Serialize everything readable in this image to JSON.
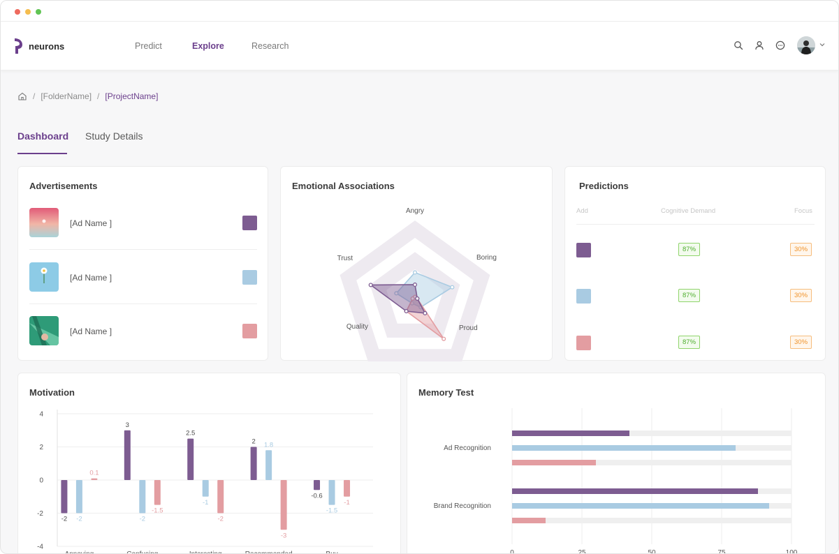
{
  "app": {
    "logo_text": "neurons"
  },
  "nav": {
    "links": [
      "Predict",
      "Explore",
      "Research"
    ],
    "active": "Explore"
  },
  "breadcrumb": {
    "folder": "[FolderName]",
    "project": "[ProjectName]",
    "separator": "/"
  },
  "tabs": {
    "dashboard": "Dashboard",
    "study_details": "Study Details"
  },
  "colors": {
    "accent": "#6b3f8c",
    "ad1": "#7d5c91",
    "ad2": "#a9cbe2",
    "ad3": "#e39da1"
  },
  "advertisements": {
    "title": "Advertisements",
    "items": [
      {
        "name": "[Ad Name ]",
        "color": "#7d5c91"
      },
      {
        "name": "[Ad Name ]",
        "color": "#a9cbe2"
      },
      {
        "name": "[Ad Name ]",
        "color": "#e39da1"
      }
    ]
  },
  "emotional": {
    "title": "Emotional Associations",
    "axes": [
      "Angry",
      "Boring",
      "Proud",
      "Quality",
      "Trust"
    ]
  },
  "predictions": {
    "title": "Predictions",
    "headers": {
      "ad": "Add",
      "cognitive": "Cognitive Demand",
      "focus": "Focus"
    },
    "rows": [
      {
        "color": "#7d5c91",
        "cognitive": "87%",
        "focus": "30%"
      },
      {
        "color": "#a9cbe2",
        "cognitive": "87%",
        "focus": "30%"
      },
      {
        "color": "#e39da1",
        "cognitive": "87%",
        "focus": "30%"
      }
    ]
  },
  "motivation": {
    "title": "Motivation"
  },
  "memory": {
    "title": "Memory Test"
  },
  "chart_data": [
    {
      "type": "bar",
      "title": "Motivation",
      "categories": [
        "Annoying",
        "Confusing",
        "Interesting",
        "Recommended",
        "Buy"
      ],
      "ylim": [
        -4,
        4
      ],
      "yticks": [
        4,
        2,
        0,
        -2,
        -4
      ],
      "grid": true,
      "series": [
        {
          "values": [
            -2,
            3,
            2.5,
            2,
            -0.6
          ],
          "labels": [
            "-2",
            "3",
            "2.5",
            "2",
            "-0.6"
          ],
          "color": "#7d5c91"
        },
        {
          "values": [
            -2,
            -2,
            -1,
            1.8,
            -1.5
          ],
          "labels": [
            "-2",
            "-2",
            "-1",
            "1.8",
            "-1.5"
          ],
          "color": "#a9cbe2"
        },
        {
          "values": [
            0.1,
            -1.5,
            -2,
            -3,
            -1
          ],
          "labels": [
            "0.1",
            "-1.5",
            "-2",
            "-3",
            "-1"
          ],
          "color": "#e39da1"
        }
      ]
    },
    {
      "type": "bar",
      "orientation": "horizontal",
      "title": "Memory Test",
      "categories": [
        "Ad Recognition",
        "Brand Recognition"
      ],
      "xlim": [
        0,
        100
      ],
      "xticks": [
        "0",
        "25",
        "50",
        "75",
        "100"
      ],
      "grid": true,
      "series": [
        {
          "values": [
            42,
            88
          ],
          "color": "#7d5c91"
        },
        {
          "values": [
            80,
            92
          ],
          "color": "#a9cbe2"
        },
        {
          "values": [
            30,
            12
          ],
          "color": "#e39da1"
        }
      ]
    },
    {
      "type": "radar",
      "title": "Emotional Associations",
      "axes": [
        "Angry",
        "Boring",
        "Proud",
        "Quality",
        "Trust"
      ],
      "rmax": 100,
      "series": [
        {
          "values": [
            30,
            5,
            35,
            30,
            95
          ],
          "color": "#7d5c91"
        },
        {
          "values": [
            55,
            80,
            20,
            10,
            40
          ],
          "color": "#a9cbe2"
        },
        {
          "values": [
            5,
            5,
            100,
            30,
            5
          ],
          "color": "#e39da1"
        }
      ]
    }
  ]
}
